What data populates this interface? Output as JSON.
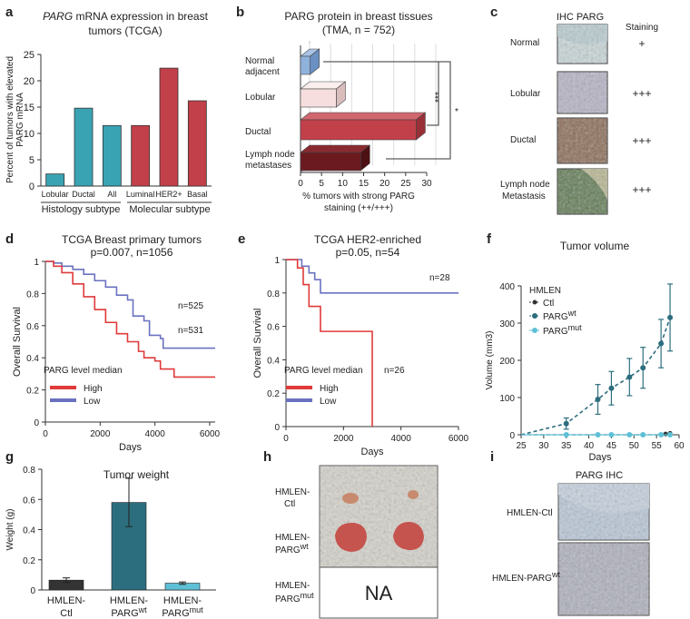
{
  "panel_letters": [
    "a",
    "b",
    "c",
    "d",
    "e",
    "f",
    "g",
    "h",
    "i"
  ],
  "colors": {
    "teal": "#3aa3b3",
    "red": "#c1404a",
    "dark_red": "#6b1a1f",
    "light_blue": "#8fb2dd",
    "pink": "#f6dede",
    "km_red": "#e03a3a",
    "km_blue": "#6a72c0",
    "dark": "#333333",
    "dark_teal": "#2d6e7e",
    "light_teal": "#5ec0d6"
  },
  "a": {
    "title_gene": "PARG",
    "title_rest": " mRNA expression in breast",
    "title_line2": "tumors (TCGA)",
    "ylabel_1": "Percent of tumors with elevated",
    "ylabel_2": "PARG mRNA",
    "group_labels": [
      "Histology subtype",
      "Molecular subtype"
    ]
  },
  "b": {
    "title": "PARG protein in breast tissues",
    "subtitle": "(TMA, n = 752)",
    "row_labels": [
      [
        "Normal",
        "adjacent"
      ],
      [
        "Lobular"
      ],
      [
        "Ductal"
      ],
      [
        "Lymph node",
        "metastases"
      ]
    ],
    "xlabel_1": "% tumors with strong PARG",
    "xlabel_2": "staining (++/+++)",
    "sig_1": "***",
    "sig_2": "*"
  },
  "c": {
    "header_ihc": "IHC PARG",
    "header_staining": "Staining",
    "rows": [
      {
        "label": [
          "Normal"
        ],
        "score": "+"
      },
      {
        "label": [
          "Lobular"
        ],
        "score": "+++"
      },
      {
        "label": [
          "Ductal"
        ],
        "score": "+++"
      },
      {
        "label": [
          "Lymph node",
          "Metastasis"
        ],
        "score": "+++"
      }
    ]
  },
  "d": {
    "title": "TCGA Breast primary tumors",
    "subtitle": "p=0.007, n=1056",
    "n_low": "n=525",
    "n_high": "n=531",
    "legend_title": "PARG level median",
    "legend_high": "High",
    "legend_low": "Low"
  },
  "e": {
    "title": "TCGA HER2-enriched",
    "subtitle": "p=0.05, n=54",
    "n_low": "n=28",
    "n_high": "n=26",
    "legend_title": "PARG level median",
    "legend_high": "High",
    "legend_low": "Low"
  },
  "f": {
    "title": "Tumor volume",
    "legend_title": "HMLEN",
    "legend_ctl": "Ctl",
    "legend_wt_base": "PARG",
    "legend_wt_sup": "wt",
    "legend_mut_base": "PARG",
    "legend_mut_sup": "mut"
  },
  "g": {
    "title": "Tumor weight"
  },
  "h": {
    "row_labels": [
      {
        "line1": "HMLEN-",
        "line2": "Ctl",
        "sup": ""
      },
      {
        "line1": "HMLEN-",
        "line2": "PARG",
        "sup": "wt"
      },
      {
        "line1": "HMLEN-",
        "line2": "PARG",
        "sup": "mut"
      }
    ],
    "na": "NA"
  },
  "i": {
    "title": "PARG IHC",
    "row_1": "HMLEN-Ctl",
    "row_2_base": "HMLEN-PARG",
    "row_2_sup": "wt"
  },
  "chart_data": [
    {
      "panel": "a",
      "type": "bar",
      "title": "PARG mRNA expression in breast tumors (TCGA)",
      "categories": [
        "Lobular",
        "Ductal",
        "All",
        "Luminal",
        "HER2+",
        "Basal"
      ],
      "values": [
        2.3,
        14.8,
        11.5,
        11.5,
        22.4,
        16.2
      ],
      "groups": [
        "histology",
        "histology",
        "histology",
        "molecular",
        "molecular",
        "molecular"
      ],
      "ylabel": "Percent of tumors with elevated PARG mRNA",
      "ylim": [
        0,
        25
      ],
      "yticks": [
        0,
        5,
        10,
        15,
        20,
        25
      ]
    },
    {
      "panel": "b",
      "type": "bar",
      "orientation": "horizontal",
      "title": "PARG protein in breast tissues (TMA, n = 752)",
      "categories": [
        "Normal adjacent",
        "Lobular",
        "Ductal",
        "Lymph node metastases"
      ],
      "values": [
        2.3,
        8.5,
        27.5,
        14.3
      ],
      "xlabel": "% tumors with strong PARG staining (++/+++)",
      "xlim": [
        0,
        30
      ],
      "xticks": [
        0,
        5,
        10,
        15,
        20,
        25,
        30
      ]
    },
    {
      "panel": "d",
      "type": "line",
      "title": "TCGA Breast primary tumors",
      "xlabel": "Days",
      "ylabel": "Overall Survival",
      "xlim": [
        0,
        6200
      ],
      "ylim": [
        0,
        1
      ],
      "xticks": [
        0,
        2000,
        4000,
        6000
      ],
      "yticks": [
        0,
        0.2,
        0.4,
        0.6,
        0.8,
        1
      ],
      "series": [
        {
          "name": "Low",
          "x": [
            0,
            300,
            600,
            1000,
            1400,
            1800,
            2200,
            2600,
            3000,
            3200,
            3600,
            3800,
            4200,
            4300,
            4700,
            6200
          ],
          "y": [
            1,
            0.99,
            0.97,
            0.95,
            0.92,
            0.88,
            0.84,
            0.79,
            0.76,
            0.66,
            0.63,
            0.54,
            0.52,
            0.46,
            0.46,
            0.46
          ]
        },
        {
          "name": "High",
          "x": [
            0,
            300,
            600,
            1000,
            1400,
            1800,
            2200,
            2600,
            3000,
            3400,
            3600,
            4000,
            4200,
            4500,
            4700,
            6200
          ],
          "y": [
            1,
            0.97,
            0.93,
            0.86,
            0.78,
            0.7,
            0.62,
            0.55,
            0.5,
            0.44,
            0.4,
            0.38,
            0.33,
            0.33,
            0.28,
            0.28
          ]
        }
      ]
    },
    {
      "panel": "e",
      "type": "line",
      "title": "TCGA HER2-enriched",
      "xlabel": "Days",
      "ylabel": "Overall Survival",
      "xlim": [
        0,
        6000
      ],
      "ylim": [
        0,
        1
      ],
      "xticks": [
        0,
        2000,
        4000,
        6000
      ],
      "yticks": [
        0,
        0.2,
        0.4,
        0.6,
        0.8,
        1
      ],
      "series": [
        {
          "name": "Low",
          "x": [
            0,
            500,
            550,
            800,
            1000,
            1200,
            6000
          ],
          "y": [
            1,
            1,
            0.96,
            0.92,
            0.88,
            0.8,
            0.8
          ]
        },
        {
          "name": "High",
          "x": [
            0,
            350,
            400,
            600,
            800,
            1100,
            1200,
            3000,
            3000
          ],
          "y": [
            1,
            1,
            0.95,
            0.85,
            0.72,
            0.72,
            0.57,
            0.57,
            0
          ]
        }
      ]
    },
    {
      "panel": "f",
      "type": "line",
      "title": "Tumor volume",
      "xlabel": "Days",
      "ylabel": "Volume (mm3)",
      "xlim": [
        25,
        60
      ],
      "ylim": [
        0,
        400
      ],
      "xticks": [
        25,
        30,
        35,
        40,
        45,
        50,
        55,
        60
      ],
      "yticks": [
        0,
        100,
        200,
        300,
        400
      ],
      "series": [
        {
          "name": "Ctl",
          "x": [
            25,
            35,
            42,
            45,
            49,
            52,
            56,
            57,
            58
          ],
          "y": [
            0,
            0,
            0,
            0,
            0,
            0,
            0,
            2,
            4
          ]
        },
        {
          "name": "PARGwt",
          "x": [
            25,
            35,
            42,
            45,
            49,
            52,
            56,
            58
          ],
          "y": [
            0,
            30,
            95,
            125,
            155,
            180,
            245,
            315
          ],
          "error": [
            0,
            15,
            40,
            45,
            50,
            55,
            65,
            90
          ]
        },
        {
          "name": "PARGmut",
          "x": [
            25,
            35,
            42,
            45,
            49,
            52,
            56,
            58
          ],
          "y": [
            0,
            0,
            0,
            0,
            0,
            0,
            0,
            0
          ]
        }
      ]
    },
    {
      "panel": "g",
      "type": "bar",
      "title": "Tumor weight",
      "categories": [
        "HMLEN-Ctl",
        "HMLEN-PARGwt",
        "HMLEN-PARGmut"
      ],
      "values": [
        0.065,
        0.58,
        0.045
      ],
      "error": [
        0.015,
        0.16,
        0.008
      ],
      "ylabel": "Weight (g)",
      "ylim": [
        0,
        0.8
      ],
      "yticks": [
        0,
        0.2,
        0.4,
        0.6,
        0.8
      ]
    }
  ]
}
